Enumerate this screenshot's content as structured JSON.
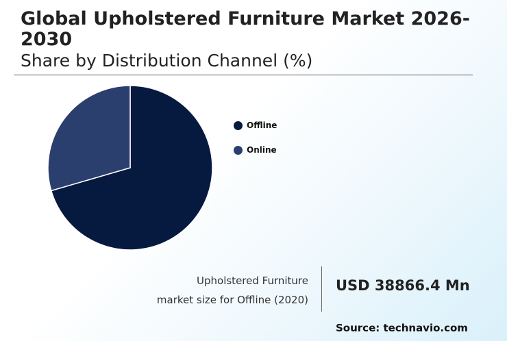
{
  "chart_data": {
    "type": "pie",
    "title": "Global Upholstered Furniture Market 2026-2030",
    "subtitle": "Share by Distribution Channel (%)",
    "categories": [
      "Offline",
      "Online"
    ],
    "values": [
      70.5,
      29.5
    ],
    "colors": [
      "#061a40",
      "#2b3f6e"
    ],
    "legend_position": "right"
  },
  "stat": {
    "label_line1": "Upholstered Furniture",
    "label_line2": "market size for Offline (2020)",
    "value": "USD 38866.4 Mn"
  },
  "source": "Source: technavio.com"
}
